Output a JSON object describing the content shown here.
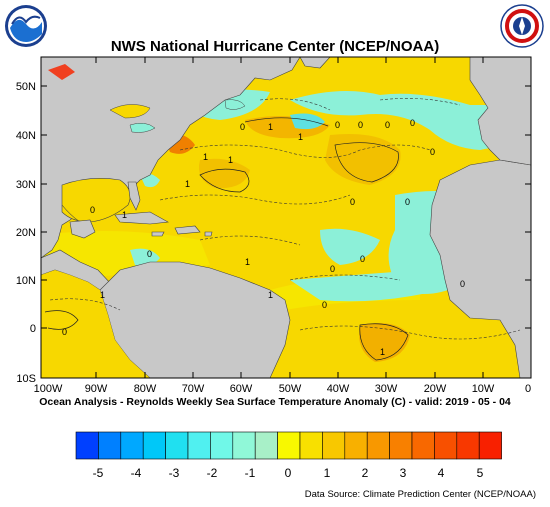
{
  "header": {
    "title": "NWS National Hurricane Center (NCEP/NOAA)"
  },
  "logos": {
    "left": {
      "icon": "noaa-logo",
      "text": "NOAA"
    },
    "right": {
      "icon": "nws-logo",
      "text": "NATIONAL WEATHER SERVICE"
    }
  },
  "map": {
    "region": "Atlantic Ocean",
    "lat_labels": [
      "50N",
      "40N",
      "30N",
      "20N",
      "10N",
      "0",
      "10S"
    ],
    "lon_labels": [
      "100W",
      "90W",
      "80W",
      "70W",
      "60W",
      "50W",
      "40W",
      "30W",
      "20W",
      "10W",
      "0"
    ],
    "contour_labels": [
      "1",
      "1",
      "0",
      "0",
      "0",
      "0",
      "0",
      "0",
      "0",
      "1",
      "1",
      "0",
      "1",
      "0",
      "1",
      "1",
      "0",
      "1",
      "1",
      "0",
      "1",
      "0",
      "0",
      "0",
      "0"
    ],
    "colors": {
      "land": "#c8c8c8",
      "sea_zero_to_plus_half": "#f5e800",
      "sea_plus_half_to_one": "#f6c900",
      "sea_minus_half_to_zero": "#8cf0d0",
      "sea_minus_one_to_minus_half": "#5ee0e0",
      "sea_warm_strong": "#f08000"
    }
  },
  "footer": {
    "subtitle": "Ocean Analysis - Reynolds Weekly Sea Surface Temperature Anomaly (C) - valid: 2019 - 05 - 04",
    "source": "Data Source: Climate Prediction Center (NCEP/NOAA)"
  },
  "legend": {
    "labels": [
      "-5",
      "-4",
      "-3",
      "-2",
      "-1",
      "0",
      "1",
      "2",
      "3",
      "4",
      "5"
    ],
    "colors": [
      "#0040ff",
      "#0080ff",
      "#00a8ff",
      "#00c8f8",
      "#20e0f0",
      "#50f0f0",
      "#70f8e8",
      "#90f8d8",
      "#a8f0c8",
      "#f8f800",
      "#f8e000",
      "#f8c800",
      "#f8b000",
      "#f89800",
      "#f88000",
      "#f86800",
      "#f85000",
      "#f83800",
      "#f82000"
    ]
  }
}
